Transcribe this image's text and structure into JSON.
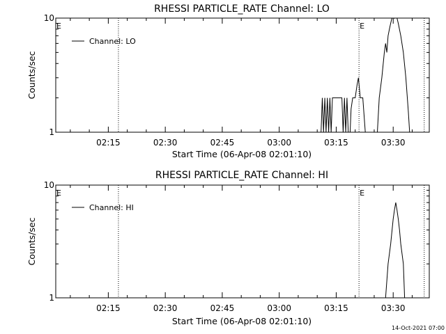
{
  "footer": {
    "timestamp": "14-Oct-2021 07:00"
  },
  "chart_data": [
    {
      "type": "line",
      "title": "RHESSI PARTICLE_RATE Channel: LO",
      "xlabel": "Start Time (06-Apr-08 02:01:10)",
      "ylabel": "Counts/sec",
      "y_scale": "log",
      "ylim": [
        1,
        10
      ],
      "xlim": [
        "02:01:10",
        "03:39:30"
      ],
      "x_ticks": [
        "02:15",
        "02:30",
        "02:45",
        "03:00",
        "03:15",
        "03:30"
      ],
      "y_ticks": [
        "1",
        "10"
      ],
      "vlines": [
        "02:17:40",
        "03:21:00",
        "03:38:10"
      ],
      "markers": [
        {
          "label": "E",
          "x": "02:01:10"
        },
        {
          "label": "E",
          "x": "03:21:00"
        }
      ],
      "legend": {
        "label": "Channel: LO",
        "placement": "top-left"
      },
      "series": [
        {
          "name": "Channel: LO",
          "color": "#000000",
          "points": [
            [
              "03:11:00",
              1.0
            ],
            [
              "03:11:20",
              2.0
            ],
            [
              "03:11:40",
              1.0
            ],
            [
              "03:12:00",
              2.0
            ],
            [
              "03:12:20",
              1.0
            ],
            [
              "03:12:40",
              2.0
            ],
            [
              "03:13:00",
              1.0
            ],
            [
              "03:13:20",
              2.0
            ],
            [
              "03:13:40",
              1.0
            ],
            [
              "03:14:00",
              2.0
            ],
            [
              "03:16:30",
              2.0
            ],
            [
              "03:16:50",
              1.0
            ],
            [
              "03:17:10",
              2.0
            ],
            [
              "03:17:30",
              1.0
            ],
            [
              "03:17:50",
              2.0
            ],
            [
              "03:18:10",
              1.0
            ],
            [
              "03:18:40",
              1.0
            ],
            [
              "03:18:55",
              1.6
            ],
            [
              "03:19:20",
              2.0
            ],
            [
              "03:20:00",
              2.0
            ],
            [
              "03:20:30",
              2.6
            ],
            [
              "03:20:50",
              3.0
            ],
            [
              "03:21:20",
              2.0
            ],
            [
              "03:22:00",
              2.0
            ],
            [
              "03:22:40",
              1.0
            ],
            [
              "03:25:50",
              1.0
            ],
            [
              "03:26:20",
              2.0
            ],
            [
              "03:27:00",
              3.0
            ],
            [
              "03:27:40",
              5.0
            ],
            [
              "03:28:00",
              6.0
            ],
            [
              "03:28:20",
              5.0
            ],
            [
              "03:28:40",
              7.0
            ],
            [
              "03:29:00",
              8.0
            ],
            [
              "03:29:20",
              9.0
            ],
            [
              "03:29:40",
              10.0
            ],
            [
              "03:30:00",
              11.0
            ],
            [
              "03:30:20",
              10.0
            ],
            [
              "03:30:40",
              11.0
            ],
            [
              "03:31:00",
              10.0
            ],
            [
              "03:31:20",
              9.0
            ],
            [
              "03:32:00",
              7.0
            ],
            [
              "03:32:40",
              5.0
            ],
            [
              "03:33:20",
              3.0
            ],
            [
              "03:34:00",
              1.5
            ],
            [
              "03:34:20",
              1.0
            ]
          ]
        }
      ]
    },
    {
      "type": "line",
      "title": "RHESSI PARTICLE_RATE Channel: HI",
      "xlabel": "Start Time (06-Apr-08 02:01:10)",
      "ylabel": "Counts/sec",
      "y_scale": "log",
      "ylim": [
        1,
        10
      ],
      "xlim": [
        "02:01:10",
        "03:39:30"
      ],
      "x_ticks": [
        "02:15",
        "02:30",
        "02:45",
        "03:00",
        "03:15",
        "03:30"
      ],
      "y_ticks": [
        "1",
        "10"
      ],
      "vlines": [
        "02:17:40",
        "03:21:00",
        "03:38:10"
      ],
      "markers": [
        {
          "label": "E",
          "x": "02:01:10"
        },
        {
          "label": "E",
          "x": "03:21:00"
        }
      ],
      "legend": {
        "label": "Channel: HI",
        "placement": "top-left"
      },
      "series": [
        {
          "name": "Channel: HI",
          "color": "#000000",
          "points": [
            [
              "03:28:00",
              1.0
            ],
            [
              "03:28:40",
              2.0
            ],
            [
              "03:29:20",
              3.0
            ],
            [
              "03:30:00",
              5.0
            ],
            [
              "03:30:20",
              6.0
            ],
            [
              "03:30:40",
              7.0
            ],
            [
              "03:31:00",
              6.0
            ],
            [
              "03:31:20",
              5.0
            ],
            [
              "03:31:40",
              4.0
            ],
            [
              "03:32:00",
              3.0
            ],
            [
              "03:32:40",
              2.0
            ],
            [
              "03:33:00",
              1.0
            ]
          ]
        }
      ]
    }
  ]
}
